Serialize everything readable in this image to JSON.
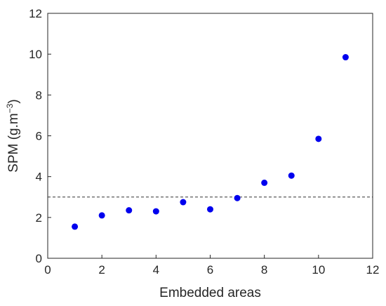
{
  "chart_data": {
    "type": "scatter",
    "title": "",
    "xlabel": "Embedded areas",
    "ylabel_main": "SPM (g.m",
    "ylabel_sup": "−3",
    "ylabel_close": ")",
    "xlim": [
      0,
      12
    ],
    "ylim": [
      0,
      12
    ],
    "xticks": [
      0,
      2,
      4,
      6,
      8,
      10,
      12
    ],
    "yticks": [
      0,
      2,
      4,
      6,
      8,
      10,
      12
    ],
    "grid": false,
    "legend": "none",
    "point_color": "#0000ee",
    "reference_line": {
      "y": 3,
      "style": "dashed",
      "color": "#333333"
    },
    "x": [
      1,
      2,
      3,
      4,
      5,
      6,
      7,
      8,
      9,
      10,
      11
    ],
    "y": [
      1.55,
      2.1,
      2.35,
      2.3,
      2.75,
      2.4,
      2.95,
      3.7,
      4.05,
      5.85,
      9.85
    ]
  }
}
